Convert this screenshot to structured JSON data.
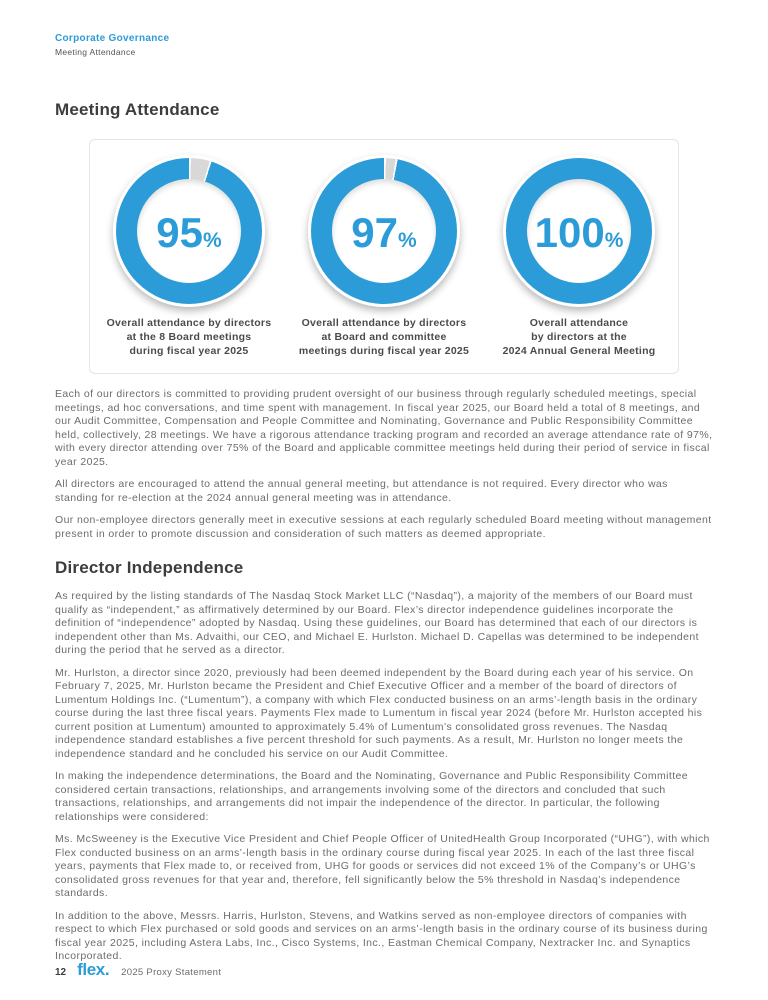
{
  "colors": {
    "brand_blue": "#2b9cd8",
    "gap_gray": "#d8d8d8",
    "heading_gray": "#3d3d3d",
    "body_gray": "#6c6c6c",
    "caption_gray": "#4b4b4b"
  },
  "breadcrumb": {
    "section": "Corporate Governance",
    "subsection": "Meeting Attendance"
  },
  "page": {
    "title": "Meeting Attendance"
  },
  "meeting_attendance": {
    "donuts": [
      {
        "value": 95,
        "display": "95",
        "unit": "%",
        "caption": "Overall attendance by directors\nat the 8 Board meetings\nduring fiscal year 2025"
      },
      {
        "value": 97,
        "display": "97",
        "unit": "%",
        "caption": "Overall attendance by directors\nat Board and committee\nmeetings during fiscal year 2025"
      },
      {
        "value": 100,
        "display": "100",
        "unit": "%",
        "caption": "Overall attendance\nby directors at the\n2024 Annual General Meeting"
      }
    ],
    "paragraphs": [
      "Each of our directors is committed to providing prudent oversight of our business through regularly scheduled meetings, special meetings, ad hoc conversations, and time spent with management. In fiscal year 2025, our Board held a total of 8 meetings, and our Audit Committee, Compensation and People Committee and Nominating, Governance and Public Responsibility Committee held, collectively, 28 meetings. We have a rigorous attendance tracking program and recorded an average attendance rate of 97%, with every director attending over 75% of the Board and applicable committee meetings held during their period of service in fiscal year 2025.",
      "All directors are encouraged to attend the annual general meeting, but attendance is not required. Every director who was standing for re-election at the 2024 annual general meeting was in attendance.",
      "Our non-employee directors generally meet in executive sessions at each regularly scheduled Board meeting without management present in order to promote discussion and consideration of such matters as deemed appropriate."
    ]
  },
  "director_independence": {
    "title": "Director Independence",
    "paragraphs": [
      "As required by the listing standards of The Nasdaq Stock Market LLC (“Nasdaq”), a majority of the members of our Board must qualify as “independent,” as affirmatively determined by our Board. Flex’s director independence guidelines incorporate the definition of “independence” adopted by Nasdaq. Using these guidelines, our Board has determined that each of our directors is independent other than Ms. Advaithi, our CEO, and Michael E. Hurlston. Michael D. Capellas was determined to be independent during the period that he served as a director.",
      "Mr. Hurlston, a director since 2020, previously had been deemed independent by the Board during each year of his service. On February 7, 2025, Mr. Hurlston became the President and Chief Executive Officer and a member of the board of directors of Lumentum Holdings Inc. (“Lumentum”), a company with which Flex conducted business on an arms’-length basis in the ordinary course during the last three fiscal years. Payments Flex made to Lumentum in fiscal year 2024 (before Mr. Hurlston accepted his current position at Lumentum) amounted to approximately 5.4% of Lumentum’s consolidated gross revenues. The Nasdaq independence standard establishes a five percent threshold for such payments. As a result, Mr. Hurlston no longer meets the independence standard and he concluded his service on our Audit Committee.",
      "In making the independence determinations, the Board and the Nominating, Governance and Public Responsibility Committee considered certain transactions, relationships, and arrangements involving some of the directors and concluded that such transactions, relationships, and arrangements did not impair the independence of the director. In particular, the following relationships were considered:",
      "Ms. McSweeney is the Executive Vice President and Chief People Officer of UnitedHealth Group Incorporated (“UHG”), with which Flex conducted business on an arms’-length basis in the ordinary course during fiscal year 2025. In each of the last three fiscal years, payments that Flex made to, or received from, UHG for goods or services did not exceed 1% of the Company’s or UHG’s consolidated gross revenues for that year and, therefore, fell significantly below the 5% threshold in Nasdaq’s independence standards.",
      "In addition to the above, Messrs. Harris, Hurlston, Stevens, and Watkins served as non-employee directors of companies with respect to which Flex purchased or sold goods and services on an arms’-length basis in the ordinary course of its business during fiscal year 2025, including Astera Labs, Inc., Cisco Systems, Inc., Eastman Chemical Company, Nextracker Inc. and Synaptics Incorporated."
    ]
  },
  "footer": {
    "page_number": "12",
    "logo": "flex.",
    "label": "2025 Proxy Statement"
  },
  "chart_data": [
    {
      "type": "pie",
      "subtype": "donut",
      "title": "Overall attendance by directors at the 8 Board meetings during fiscal year 2025",
      "labels": [
        "Attendance",
        "Remainder"
      ],
      "values": [
        95,
        5
      ],
      "center_label": "95%",
      "colors": [
        "#2b9cd8",
        "#d8d8d8"
      ],
      "legend_position": "none"
    },
    {
      "type": "pie",
      "subtype": "donut",
      "title": "Overall attendance by directors at Board and committee meetings during fiscal year 2025",
      "labels": [
        "Attendance",
        "Remainder"
      ],
      "values": [
        97,
        3
      ],
      "center_label": "97%",
      "colors": [
        "#2b9cd8",
        "#d8d8d8"
      ],
      "legend_position": "none"
    },
    {
      "type": "pie",
      "subtype": "donut",
      "title": "Overall attendance by directors at the 2024 Annual General Meeting",
      "labels": [
        "Attendance",
        "Remainder"
      ],
      "values": [
        100,
        0
      ],
      "center_label": "100%",
      "colors": [
        "#2b9cd8",
        "#d8d8d8"
      ],
      "legend_position": "none"
    }
  ]
}
